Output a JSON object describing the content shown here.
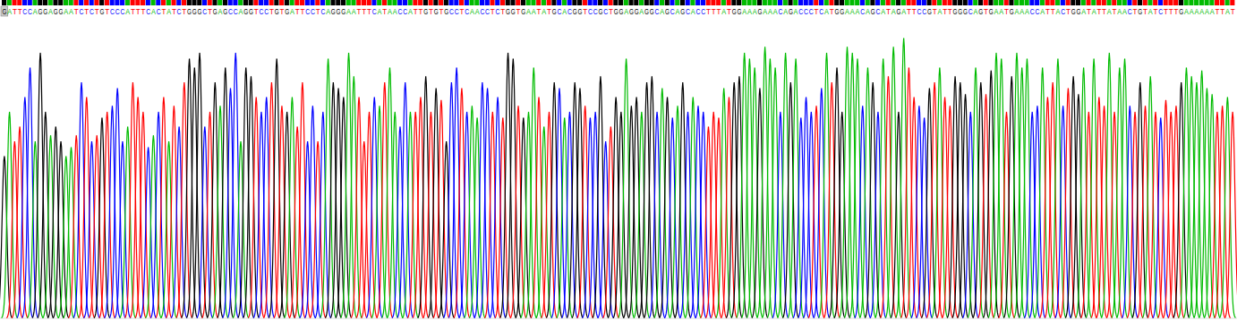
{
  "chart_data": {
    "type": "chromatogram",
    "tick_labels": false,
    "ylim": [
      0,
      100
    ],
    "categories": [
      "G",
      "A",
      "T",
      "T",
      "C",
      "C",
      "A",
      "G",
      "G",
      "A",
      "G",
      "G",
      "A",
      "A",
      "T",
      "C",
      "T",
      "C",
      "T",
      "G",
      "T",
      "C",
      "C",
      "C",
      "A",
      "T",
      "T",
      "T",
      "C",
      "A",
      "C",
      "T",
      "A",
      "T",
      "C",
      "T",
      "G",
      "G",
      "G",
      "C",
      "T",
      "G",
      "A",
      "G",
      "C",
      "C",
      "A",
      "G",
      "G",
      "T",
      "C",
      "C",
      "T",
      "G",
      "T",
      "G",
      "A",
      "T",
      "T",
      "C",
      "C",
      "T",
      "C",
      "A",
      "G",
      "G",
      "G",
      "A",
      "A",
      "T",
      "T",
      "T",
      "C",
      "A",
      "T",
      "A",
      "A",
      "C",
      "C",
      "A",
      "T",
      "T",
      "G",
      "T",
      "G",
      "T",
      "G",
      "C",
      "C",
      "T",
      "C",
      "A",
      "A",
      "C",
      "C",
      "T",
      "C",
      "T",
      "G",
      "G",
      "T",
      "G",
      "A",
      "A",
      "T",
      "A",
      "T",
      "G",
      "C",
      "A",
      "C",
      "G",
      "G",
      "T",
      "C",
      "C",
      "G",
      "C",
      "T",
      "G",
      "G",
      "A",
      "G",
      "G",
      "A",
      "G",
      "G",
      "C",
      "A",
      "G",
      "C",
      "A",
      "G",
      "C",
      "A",
      "C",
      "C",
      "T",
      "T",
      "T",
      "A",
      "T",
      "G",
      "G",
      "A",
      "A",
      "A",
      "G",
      "A",
      "A",
      "A",
      "C",
      "A",
      "G",
      "A",
      "C",
      "C",
      "C",
      "T",
      "C",
      "A",
      "T",
      "G",
      "G",
      "A",
      "A",
      "A",
      "C",
      "A",
      "G",
      "C",
      "A",
      "T",
      "A",
      "G",
      "A",
      "T",
      "T",
      "C",
      "C",
      "G",
      "T",
      "A",
      "T",
      "T",
      "G",
      "G",
      "G",
      "C",
      "A",
      "G",
      "T",
      "G",
      "A",
      "A",
      "T",
      "G",
      "A",
      "A",
      "A",
      "C",
      "C",
      "A",
      "T",
      "T",
      "A",
      "C",
      "T",
      "G",
      "G",
      "A",
      "T",
      "A",
      "T",
      "T",
      "A",
      "T",
      "A",
      "A",
      "C",
      "T",
      "G",
      "T",
      "A",
      "T",
      "C",
      "T",
      "T",
      "T",
      "G",
      "A",
      "A",
      "A",
      "A",
      "A",
      "A",
      "T",
      "T",
      "A",
      "T"
    ],
    "values": [
      55,
      70,
      60,
      65,
      75,
      85,
      60,
      90,
      70,
      62,
      65,
      60,
      55,
      58,
      62,
      80,
      75,
      60,
      62,
      68,
      70,
      72,
      78,
      60,
      65,
      80,
      75,
      70,
      58,
      62,
      70,
      75,
      60,
      72,
      65,
      80,
      88,
      85,
      90,
      65,
      70,
      80,
      72,
      85,
      78,
      90,
      60,
      85,
      82,
      75,
      70,
      75,
      80,
      88,
      72,
      70,
      75,
      65,
      80,
      60,
      72,
      60,
      70,
      88,
      80,
      78,
      75,
      90,
      82,
      75,
      60,
      70,
      75,
      72,
      80,
      85,
      70,
      65,
      80,
      70,
      70,
      75,
      82,
      70,
      78,
      74,
      60,
      80,
      85,
      78,
      70,
      72,
      68,
      80,
      78,
      70,
      75,
      68,
      90,
      88,
      72,
      68,
      70,
      85,
      75,
      65,
      70,
      80,
      78,
      68,
      70,
      80,
      78,
      72,
      68,
      70,
      82,
      60,
      65,
      75,
      70,
      88,
      72,
      75,
      70,
      80,
      82,
      70,
      78,
      75,
      68,
      72,
      80,
      70,
      75,
      72,
      70,
      65,
      70,
      68,
      78,
      75,
      80,
      82,
      90,
      88,
      85,
      78,
      92,
      88,
      85,
      70,
      90,
      80,
      88,
      68,
      75,
      70,
      72,
      78,
      90,
      80,
      85,
      70,
      92,
      90,
      88,
      72,
      85,
      80,
      70,
      88,
      82,
      92,
      70,
      95,
      85,
      75,
      72,
      68,
      78,
      80,
      85,
      75,
      72,
      82,
      80,
      76,
      70,
      85,
      80,
      76,
      84,
      90,
      88,
      70,
      82,
      90,
      85,
      88,
      70,
      72,
      85,
      75,
      80,
      88,
      72,
      78,
      82,
      76,
      85,
      70,
      88,
      75,
      72,
      90,
      70,
      85,
      88,
      72,
      70,
      80,
      72,
      82,
      70,
      68,
      74,
      70,
      72,
      80,
      85,
      82,
      80,
      84,
      78,
      76,
      70,
      72,
      75,
      70
    ],
    "colors": [
      "#000",
      "#0b0",
      "#f00",
      "#f00",
      "#00f",
      "#00f",
      "#0b0",
      "#000",
      "#000",
      "#0b0",
      "#000",
      "#000",
      "#0b0",
      "#0b0",
      "#f00",
      "#00f",
      "#f00",
      "#00f",
      "#f00",
      "#000",
      "#f00",
      "#00f",
      "#00f",
      "#00f",
      "#0b0",
      "#f00",
      "#f00",
      "#f00",
      "#00f",
      "#0b0",
      "#00f",
      "#f00",
      "#0b0",
      "#f00",
      "#00f",
      "#f00",
      "#000",
      "#000",
      "#000",
      "#00f",
      "#f00",
      "#000",
      "#0b0",
      "#000",
      "#00f",
      "#00f",
      "#0b0",
      "#000",
      "#000",
      "#f00",
      "#00f",
      "#00f",
      "#f00",
      "#000",
      "#f00",
      "#000",
      "#0b0",
      "#f00",
      "#f00",
      "#00f",
      "#00f",
      "#f00",
      "#00f",
      "#0b0",
      "#000",
      "#000",
      "#000",
      "#0b0",
      "#0b0",
      "#f00",
      "#f00",
      "#f00",
      "#00f",
      "#0b0",
      "#f00",
      "#0b0",
      "#0b0",
      "#00f",
      "#00f",
      "#0b0",
      "#f00",
      "#f00",
      "#000",
      "#f00",
      "#000",
      "#f00",
      "#000",
      "#00f",
      "#00f",
      "#f00",
      "#00f",
      "#0b0",
      "#0b0",
      "#00f",
      "#00f",
      "#f00",
      "#00f",
      "#f00",
      "#000",
      "#000",
      "#f00",
      "#000",
      "#0b0",
      "#0b0",
      "#f00",
      "#0b0",
      "#f00",
      "#000",
      "#00f",
      "#0b0",
      "#00f",
      "#000",
      "#000",
      "#f00",
      "#00f",
      "#00f",
      "#000",
      "#00f",
      "#f00",
      "#000",
      "#000",
      "#0b0",
      "#000",
      "#000",
      "#0b0",
      "#000",
      "#000",
      "#00f",
      "#0b0",
      "#000",
      "#00f",
      "#0b0",
      "#000",
      "#00f",
      "#0b0",
      "#00f",
      "#00f",
      "#f00",
      "#f00",
      "#f00",
      "#0b0",
      "#f00",
      "#000",
      "#000",
      "#0b0",
      "#0b0",
      "#0b0",
      "#000",
      "#0b0",
      "#0b0",
      "#0b0",
      "#00f",
      "#0b0",
      "#000",
      "#0b0",
      "#00f",
      "#00f",
      "#00f",
      "#f00",
      "#00f",
      "#0b0",
      "#f00",
      "#000",
      "#000",
      "#0b0",
      "#0b0",
      "#0b0",
      "#00f",
      "#0b0",
      "#000",
      "#00f",
      "#0b0",
      "#f00",
      "#0b0",
      "#000",
      "#0b0",
      "#f00",
      "#f00",
      "#00f",
      "#00f",
      "#000",
      "#f00",
      "#0b0",
      "#f00",
      "#f00",
      "#000",
      "#000",
      "#000",
      "#00f",
      "#0b0",
      "#000",
      "#f00",
      "#000",
      "#0b0",
      "#0b0",
      "#f00",
      "#000",
      "#0b0",
      "#0b0",
      "#0b0",
      "#00f",
      "#00f",
      "#0b0",
      "#f00",
      "#f00",
      "#0b0",
      "#00f",
      "#f00",
      "#000",
      "#000",
      "#0b0",
      "#f00",
      "#0b0",
      "#f00",
      "#f00",
      "#0b0",
      "#f00",
      "#0b0",
      "#0b0",
      "#00f",
      "#f00",
      "#000",
      "#f00",
      "#0b0",
      "#f00",
      "#00f",
      "#f00",
      "#f00",
      "#f00",
      "#000",
      "#0b0",
      "#0b0",
      "#0b0",
      "#0b0",
      "#0b0",
      "#0b0",
      "#f00",
      "#f00",
      "#0b0",
      "#f00"
    ]
  }
}
